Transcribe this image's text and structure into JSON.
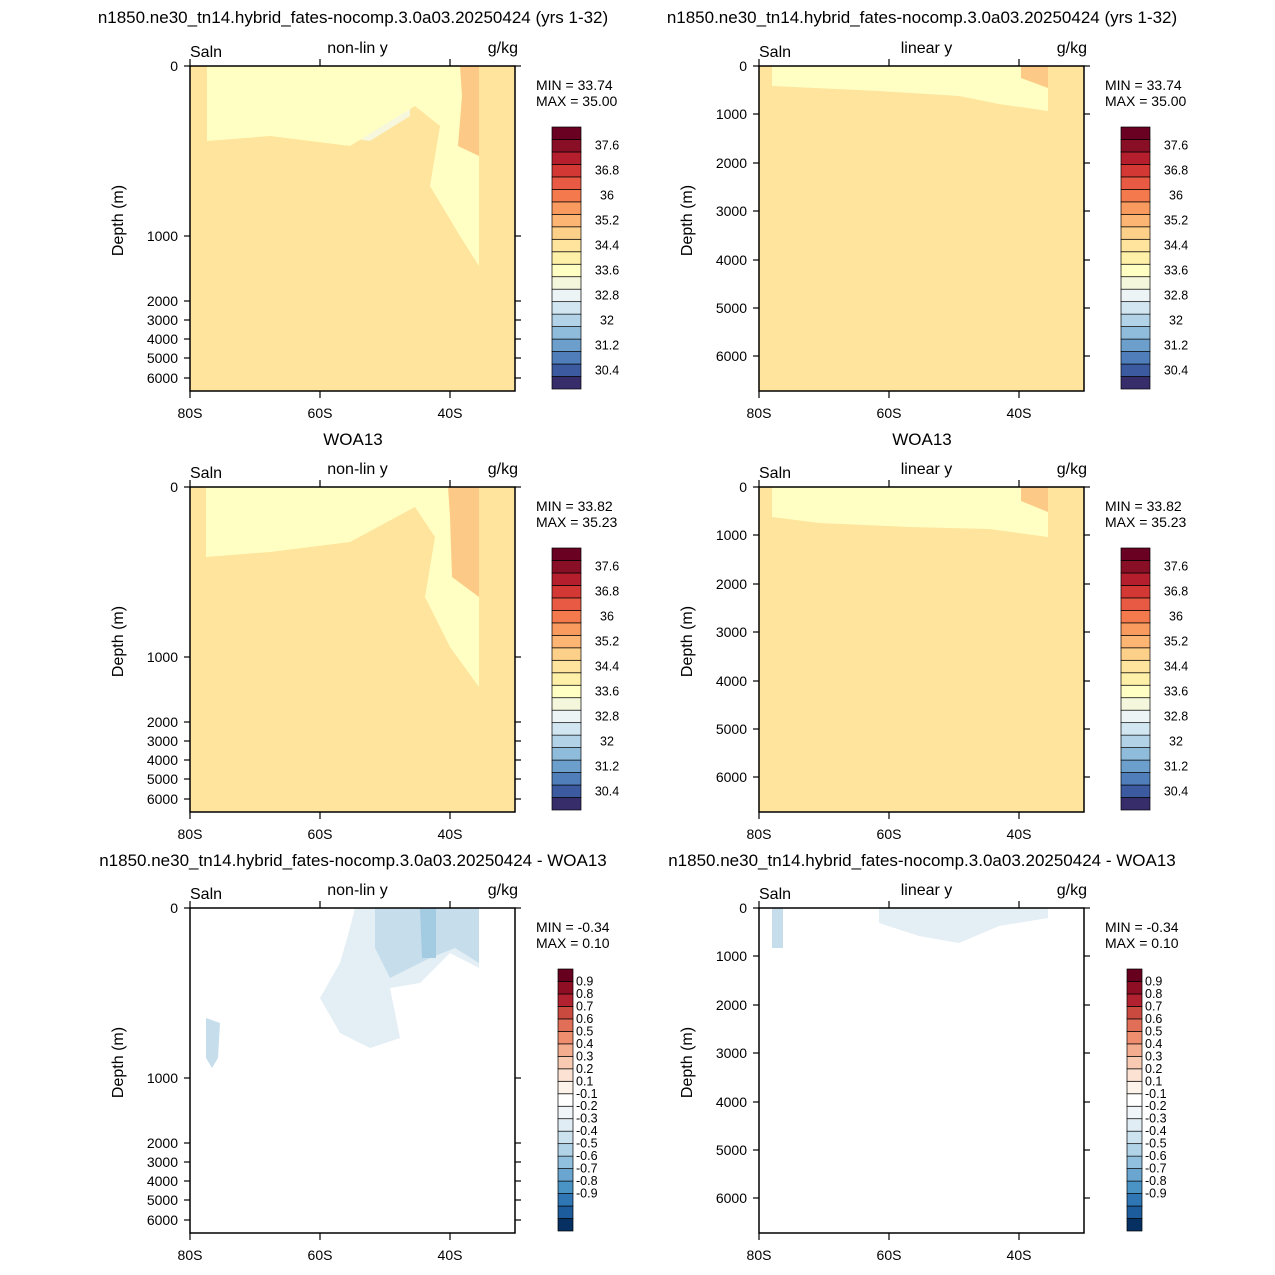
{
  "page_titles": {
    "top_left": "n1850.ne30_tn14.hybrid_fates-nocomp.3.0a03.20250424 (yrs 1-32)",
    "top_right": "n1850.ne30_tn14.hybrid_fates-nocomp.3.0a03.20250424 (yrs 1-32)",
    "mid_left": "WOA13",
    "mid_right": "WOA13",
    "bot_left": "n1850.ne30_tn14.hybrid_fates-nocomp.3.0a03.20250424 - WOA13",
    "bot_right": "n1850.ne30_tn14.hybrid_fates-nocomp.3.0a03.20250424 - WOA13"
  },
  "colors": {
    "land": "#c0c0c0",
    "abs_palette": [
      "#382d6b",
      "#3c5aa0",
      "#4f7ebb",
      "#6d9fcc",
      "#8fbcdb",
      "#b2d3e7",
      "#d2e6f1",
      "#ecf4f6",
      "#f4f7dc",
      "#ffffc4",
      "#fff0a8",
      "#fee49c",
      "#fdd08a",
      "#fcb572",
      "#f99a5e",
      "#f47a4e",
      "#e85a43",
      "#d43834",
      "#b41e2d",
      "#890f26",
      "#6a0022"
    ],
    "diff_palette": [
      "#053061",
      "#1c5b9c",
      "#2f76b5",
      "#4a93c5",
      "#6ba6d0",
      "#91c0de",
      "#b1d3e7",
      "#cde2ef",
      "#e1edf5",
      "#f0f5f9",
      "#ffffff",
      "#fdf3eb",
      "#fbe2d2",
      "#f8cab2",
      "#f4ad8f",
      "#ee8e6f",
      "#e16f57",
      "#cb4a40",
      "#b2212f",
      "#900e24",
      "#67001f"
    ]
  },
  "chart_data": [
    {
      "type": "heatmap",
      "panel": "model-nonlinear",
      "title": "n1850.ne30_tn14.hybrid_fates-nocomp.3.0a03.20250424 (yrs 1-32)",
      "left_label": "Saln",
      "center_label": "non-lin y",
      "right_label": "g/kg",
      "ylabel": "Depth (m)",
      "y_scale": "non-linear",
      "xlim": [
        -80,
        -30
      ],
      "ylim": [
        6500,
        0
      ],
      "xticks": [
        "80S",
        "60S",
        "40S"
      ],
      "yticks": [
        "0",
        "1000",
        "2000",
        "3000",
        "4000",
        "5000",
        "6000"
      ],
      "min_label": "MIN =  33.74",
      "max_label": "MAX =  35.00",
      "colorbar_labels": [
        "37.6",
        "36.8",
        "36",
        "35.2",
        "34.4",
        "33.6",
        "32.8",
        "32",
        "31.2",
        "30.4"
      ]
    },
    {
      "type": "heatmap",
      "panel": "model-linear",
      "title": "n1850.ne30_tn14.hybrid_fates-nocomp.3.0a03.20250424 (yrs 1-32)",
      "left_label": "Saln",
      "center_label": "linear y",
      "right_label": "g/kg",
      "ylabel": "Depth (m)",
      "y_scale": "linear",
      "xlim": [
        -80,
        -30
      ],
      "ylim": [
        6800,
        0
      ],
      "xticks": [
        "80S",
        "60S",
        "40S"
      ],
      "yticks": [
        "0",
        "1000",
        "2000",
        "3000",
        "4000",
        "5000",
        "6000"
      ],
      "min_label": "MIN =  33.74",
      "max_label": "MAX =  35.00",
      "colorbar_labels": [
        "37.6",
        "36.8",
        "36",
        "35.2",
        "34.4",
        "33.6",
        "32.8",
        "32",
        "31.2",
        "30.4"
      ]
    },
    {
      "type": "heatmap",
      "panel": "obs-nonlinear",
      "title": "WOA13",
      "left_label": "Saln",
      "center_label": "non-lin y",
      "right_label": "g/kg",
      "ylabel": "Depth (m)",
      "y_scale": "non-linear",
      "xlim": [
        -80,
        -30
      ],
      "ylim": [
        6500,
        0
      ],
      "xticks": [
        "80S",
        "60S",
        "40S"
      ],
      "yticks": [
        "0",
        "1000",
        "2000",
        "3000",
        "4000",
        "5000",
        "6000"
      ],
      "min_label": "MIN =  33.82",
      "max_label": "MAX =  35.23",
      "colorbar_labels": [
        "37.6",
        "36.8",
        "36",
        "35.2",
        "34.4",
        "33.6",
        "32.8",
        "32",
        "31.2",
        "30.4"
      ]
    },
    {
      "type": "heatmap",
      "panel": "obs-linear",
      "title": "WOA13",
      "left_label": "Saln",
      "center_label": "linear y",
      "right_label": "g/kg",
      "ylabel": "Depth (m)",
      "y_scale": "linear",
      "xlim": [
        -80,
        -30
      ],
      "ylim": [
        6800,
        0
      ],
      "xticks": [
        "80S",
        "60S",
        "40S"
      ],
      "yticks": [
        "0",
        "1000",
        "2000",
        "3000",
        "4000",
        "5000",
        "6000"
      ],
      "min_label": "MIN =  33.82",
      "max_label": "MAX =  35.23",
      "colorbar_labels": [
        "37.6",
        "36.8",
        "36",
        "35.2",
        "34.4",
        "33.6",
        "32.8",
        "32",
        "31.2",
        "30.4"
      ]
    },
    {
      "type": "heatmap",
      "panel": "diff-nonlinear",
      "title": "n1850.ne30_tn14.hybrid_fates-nocomp.3.0a03.20250424 - WOA13",
      "left_label": "Saln",
      "center_label": "non-lin y",
      "right_label": "g/kg",
      "ylabel": "Depth (m)",
      "y_scale": "non-linear",
      "xlim": [
        -80,
        -30
      ],
      "ylim": [
        6500,
        0
      ],
      "xticks": [
        "80S",
        "60S",
        "40S"
      ],
      "yticks": [
        "0",
        "1000",
        "2000",
        "3000",
        "4000",
        "5000",
        "6000"
      ],
      "min_label": "MIN =  -0.34",
      "max_label": "MAX =   0.10",
      "colorbar_labels": [
        "0.9",
        "0.8",
        "0.7",
        "0.6",
        "0.5",
        "0.4",
        "0.3",
        "0.2",
        "0.1",
        "-0.1",
        "-0.2",
        "-0.3",
        "-0.4",
        "-0.5",
        "-0.6",
        "-0.7",
        "-0.8",
        "-0.9"
      ]
    },
    {
      "type": "heatmap",
      "panel": "diff-linear",
      "title": "n1850.ne30_tn14.hybrid_fates-nocomp.3.0a03.20250424 - WOA13",
      "left_label": "Saln",
      "center_label": "linear y",
      "right_label": "g/kg",
      "ylabel": "Depth (m)",
      "y_scale": "linear",
      "xlim": [
        -80,
        -30
      ],
      "ylim": [
        6800,
        0
      ],
      "xticks": [
        "80S",
        "60S",
        "40S"
      ],
      "yticks": [
        "0",
        "1000",
        "2000",
        "3000",
        "4000",
        "5000",
        "6000"
      ],
      "min_label": "MIN =  -0.34",
      "max_label": "MAX =   0.10",
      "colorbar_labels": [
        "0.9",
        "0.8",
        "0.7",
        "0.6",
        "0.5",
        "0.4",
        "0.3",
        "0.2",
        "0.1",
        "-0.1",
        "-0.2",
        "-0.3",
        "-0.4",
        "-0.5",
        "-0.6",
        "-0.7",
        "-0.8",
        "-0.9"
      ]
    }
  ]
}
